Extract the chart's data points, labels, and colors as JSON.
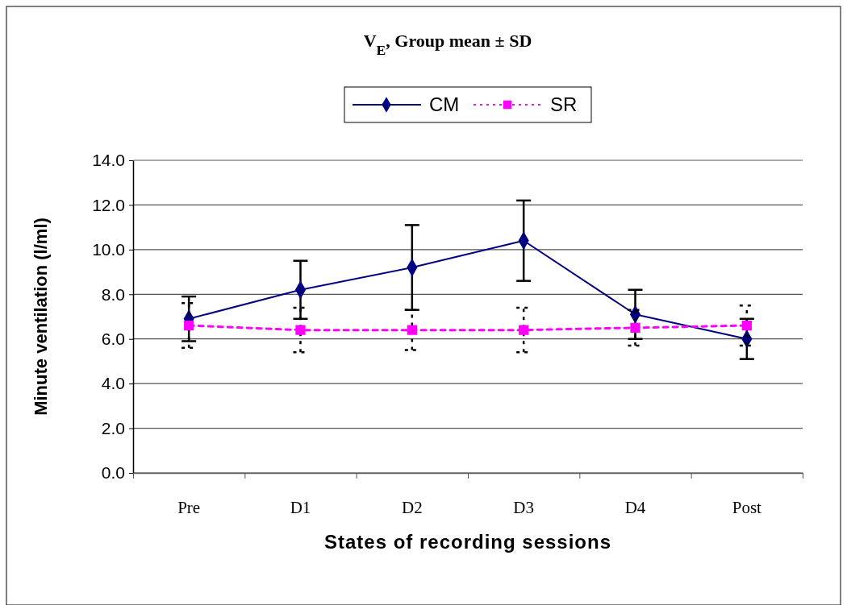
{
  "chart_data": {
    "type": "line",
    "title": "V$_{E}$, Group mean ± SD",
    "xlabel": "States of recording sessions",
    "ylabel": "Minute ventilation (l/ml)",
    "categories": [
      "Pre",
      "D1",
      "D2",
      "D3",
      "D4",
      "Post"
    ],
    "series": [
      {
        "name": "CM",
        "color": "#000080",
        "values": [
          6.9,
          8.2,
          9.2,
          10.4,
          7.1,
          6.0
        ],
        "errors": [
          1.0,
          1.3,
          1.9,
          1.8,
          1.1,
          0.9
        ],
        "marker": "diamond",
        "line_style": "solid"
      },
      {
        "name": "SR",
        "color": "#ff00ff",
        "values": [
          6.6,
          6.4,
          6.4,
          6.4,
          6.5,
          6.6
        ],
        "errors": [
          1.0,
          1.0,
          0.9,
          1.0,
          0.8,
          0.9
        ],
        "marker": "square",
        "line_style": "dashed"
      }
    ],
    "ylim": [
      0,
      14
    ],
    "yticks": [
      {
        "value": 0,
        "label": "0.0"
      },
      {
        "value": 2,
        "label": "2.0"
      },
      {
        "value": 4,
        "label": "4.0"
      },
      {
        "value": 6,
        "label": "6.0"
      },
      {
        "value": 8,
        "label": "8.0"
      },
      {
        "value": 10,
        "label": "10.0"
      },
      {
        "value": 12,
        "label": "12.0"
      },
      {
        "value": 14,
        "label": "14.0"
      }
    ],
    "grid": "y",
    "legend": "top"
  }
}
